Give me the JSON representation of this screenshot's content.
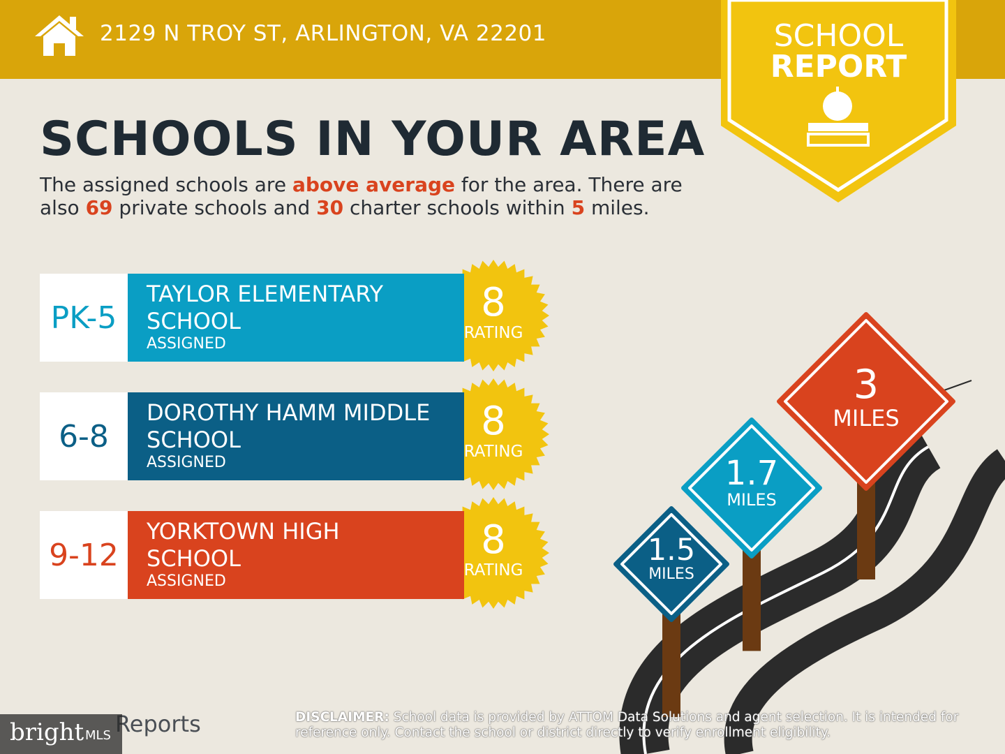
{
  "header": {
    "address": "2129 N TROY ST, ARLINGTON, VA 22201"
  },
  "badge": {
    "line1": "SCHOOL",
    "line2": "REPORT"
  },
  "title": "SCHOOLS IN YOUR AREA",
  "intro": [
    {
      "text": "The assigned schools are ",
      "highlight": false
    },
    {
      "text": "above average",
      "highlight": true
    },
    {
      "text": " for the area. There are also ",
      "highlight": false
    },
    {
      "text": "69",
      "highlight": true
    },
    {
      "text": " private schools and ",
      "highlight": false
    },
    {
      "text": "30",
      "highlight": true
    },
    {
      "text": " charter schools within ",
      "highlight": false
    },
    {
      "text": "5",
      "highlight": true
    },
    {
      "text": " miles.",
      "highlight": false
    }
  ],
  "schools": [
    {
      "grades": "PK-5",
      "name": "TAYLOR ELEMENTARY SCHOOL",
      "status": "ASSIGNED",
      "rating": "8",
      "rating_label": "RATING",
      "color": "#0a9ec4"
    },
    {
      "grades": "6-8",
      "name": "DOROTHY HAMM MIDDLE SCHOOL",
      "status": "ASSIGNED",
      "rating": "8",
      "rating_label": "RATING",
      "color": "#0b5f86"
    },
    {
      "grades": "9-12",
      "name": "YORKTOWN HIGH SCHOOL",
      "status": "ASSIGNED",
      "rating": "8",
      "rating_label": "RATING",
      "color": "#d9431e"
    }
  ],
  "signs": [
    {
      "value": "1.5",
      "unit": "MILES",
      "color": "#0b5f86"
    },
    {
      "value": "1.7",
      "unit": "MILES",
      "color": "#0a9ec4"
    },
    {
      "value": "3",
      "unit": "MILES",
      "color": "#d9431e"
    }
  ],
  "disclaimer": {
    "label": "DISCLAIMER:",
    "text": " School data is provided by ATTOM Data Solutions and agent selection. It is intended for reference only. Contact the school or district directly to verify enrollment eligibility."
  },
  "footer": {
    "brand": "Reports",
    "watermark": "bright",
    "watermark_suffix": "MLS"
  }
}
